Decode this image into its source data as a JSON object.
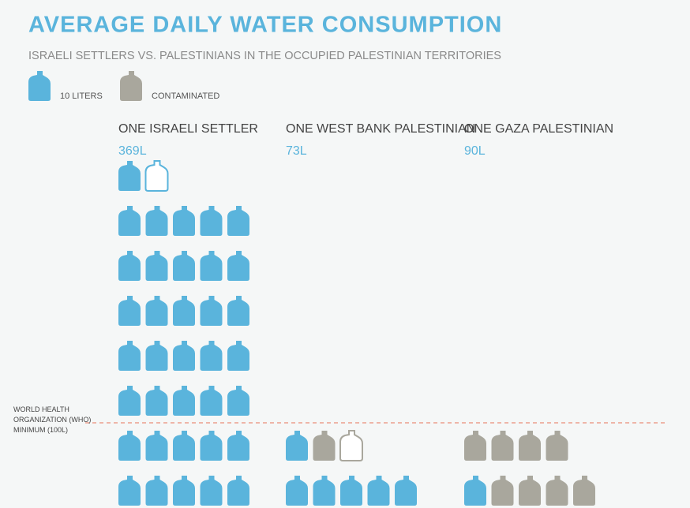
{
  "chart_data": {
    "type": "pictogram",
    "title": "AVERAGE DAILY WATER CONSUMPTION",
    "subtitle": "ISRAELI SETTLERS VS. PALESTINIANS IN THE OCCUPIED PALESTINIAN TERRITORIES",
    "icon_value": 10,
    "icons_per_row": 5,
    "categories": [
      "ONE ISRAELI SETTLER",
      "ONE WEST BANK PALESTINIAN",
      "ONE GAZA PALESTINIAN"
    ],
    "totals": [
      369,
      73,
      90
    ],
    "total_labels": [
      "369L",
      "73L",
      "90L"
    ],
    "series": [
      {
        "name": "10 LITERS",
        "color": "#5ab4dc",
        "values": [
          369,
          60,
          10
        ]
      },
      {
        "name": "CONTAMINATED",
        "color": "#a9a79d",
        "values": [
          0,
          13,
          80
        ]
      }
    ],
    "threshold": {
      "value": 100,
      "label": "WORLD HEALTH ORGANIZATION (WHO) MINIMUM (100L)",
      "color": "#e8735a"
    }
  }
}
